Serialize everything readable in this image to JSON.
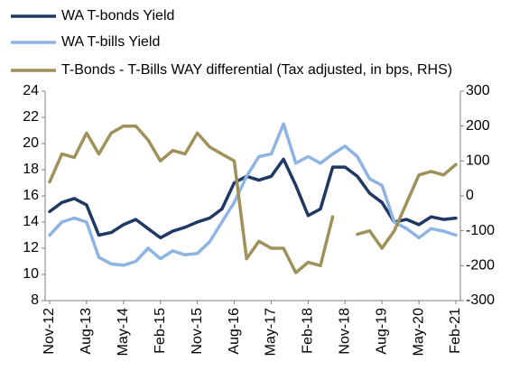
{
  "chart_data": {
    "type": "line",
    "categories": [
      "Nov-12",
      null,
      null,
      "Aug-13",
      null,
      null,
      "May-14",
      null,
      null,
      "Feb-15",
      null,
      null,
      "Nov-15",
      null,
      null,
      "Aug-16",
      null,
      null,
      "May-17",
      null,
      null,
      "Feb-18",
      null,
      null,
      "Nov-18",
      null,
      null,
      "Aug-19",
      null,
      null,
      "May-20",
      null,
      null,
      "Feb-21"
    ],
    "series": [
      {
        "name": "WA T-bonds Yield",
        "color": "#1f3864",
        "values": [
          14.8,
          15.5,
          15.8,
          15.3,
          13.0,
          13.2,
          13.8,
          14.2,
          13.5,
          12.8,
          13.3,
          13.6,
          14.0,
          14.3,
          15.0,
          17.0,
          17.5,
          17.2,
          17.5,
          18.8,
          16.8,
          14.5,
          15.0,
          18.2,
          18.2,
          17.5,
          16.2,
          15.5,
          14.0,
          14.2,
          13.8,
          14.4,
          14.2,
          14.3
        ]
      },
      {
        "name": "WA T-bills Yield",
        "color": "#8eb4e3",
        "values": [
          13.0,
          14.0,
          14.3,
          14.0,
          11.3,
          10.8,
          10.7,
          11.0,
          12.0,
          11.2,
          11.8,
          11.5,
          11.6,
          12.5,
          14.0,
          15.5,
          17.5,
          19.0,
          19.2,
          21.5,
          18.5,
          19.0,
          18.5,
          19.2,
          19.8,
          19.0,
          17.3,
          16.8,
          14.0,
          13.5,
          12.8,
          13.5,
          13.3,
          13.0
        ]
      },
      {
        "name": "T-Bonds - T-Bills WAY differential (Tax adjusted, in bps, RHS)",
        "color": "#a0915a",
        "axis": "y2",
        "values": [
          40,
          120,
          110,
          180,
          120,
          180,
          200,
          200,
          160,
          100,
          130,
          120,
          180,
          140,
          120,
          100,
          -180,
          -130,
          -150,
          -150,
          -220,
          -190,
          -200,
          -60,
          null,
          -110,
          -100,
          -150,
          -100,
          -20,
          60,
          70,
          60,
          90
        ]
      }
    ],
    "ylim": [
      8,
      24
    ],
    "yticks": [
      8,
      10,
      12,
      14,
      16,
      18,
      20,
      22,
      24
    ],
    "y2lim": [
      -300,
      300
    ],
    "y2ticks": [
      -300,
      -200,
      -100,
      0,
      100,
      200,
      300
    ],
    "grid": false,
    "legend": "top"
  }
}
